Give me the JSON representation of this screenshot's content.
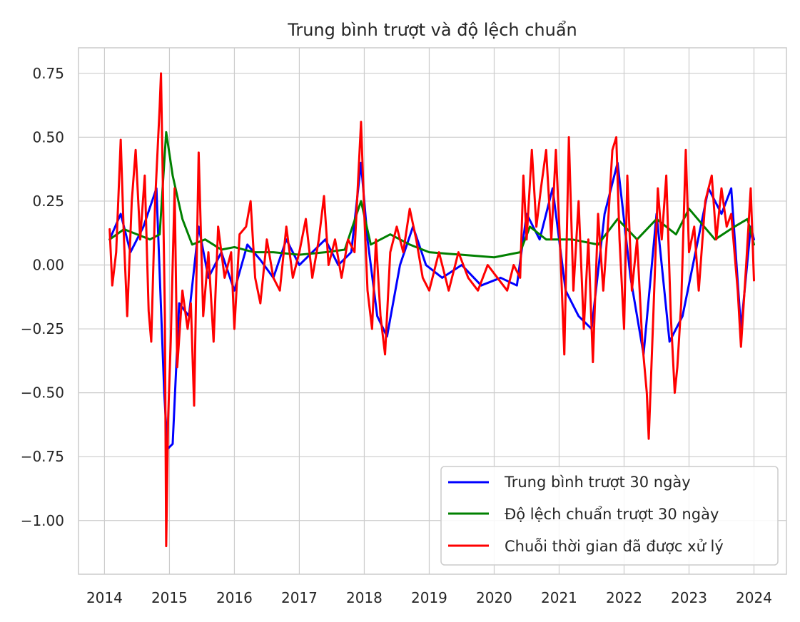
{
  "chart_data": {
    "type": "line",
    "title": "Trung bình trượt và độ lệch chuẩn",
    "xlabel": "",
    "ylabel": "",
    "xlim": [
      2013.6,
      2024.5
    ],
    "ylim": [
      -1.21,
      0.85
    ],
    "x_ticks": [
      2014,
      2015,
      2016,
      2017,
      2018,
      2019,
      2020,
      2021,
      2022,
      2023,
      2024
    ],
    "x_tick_labels": [
      "2014",
      "2015",
      "2016",
      "2017",
      "2018",
      "2019",
      "2020",
      "2021",
      "2022",
      "2023",
      "2024"
    ],
    "y_ticks": [
      0.75,
      0.5,
      0.25,
      0.0,
      -0.25,
      -0.5,
      -0.75,
      -1.0
    ],
    "y_tick_labels": [
      "0.75",
      "0.50",
      "0.25",
      "0.00",
      "−0.25",
      "−0.50",
      "−0.75",
      "−1.00"
    ],
    "grid": true,
    "legend_position": "lower-right",
    "series": [
      {
        "name": "Trung bình trượt 30 ngày",
        "color": "#0000ff",
        "points": [
          [
            2014.08,
            0.1
          ],
          [
            2014.25,
            0.2
          ],
          [
            2014.4,
            0.05
          ],
          [
            2014.6,
            0.15
          ],
          [
            2014.8,
            0.3
          ],
          [
            2014.92,
            -0.5
          ],
          [
            2014.97,
            -0.72
          ],
          [
            2015.05,
            -0.7
          ],
          [
            2015.15,
            -0.15
          ],
          [
            2015.3,
            -0.2
          ],
          [
            2015.45,
            0.15
          ],
          [
            2015.6,
            -0.05
          ],
          [
            2015.8,
            0.05
          ],
          [
            2016.0,
            -0.1
          ],
          [
            2016.2,
            0.08
          ],
          [
            2016.4,
            0.02
          ],
          [
            2016.6,
            -0.05
          ],
          [
            2016.8,
            0.1
          ],
          [
            2017.0,
            0.0
          ],
          [
            2017.2,
            0.05
          ],
          [
            2017.4,
            0.1
          ],
          [
            2017.6,
            0.0
          ],
          [
            2017.8,
            0.05
          ],
          [
            2017.95,
            0.4
          ],
          [
            2018.05,
            0.1
          ],
          [
            2018.2,
            -0.2
          ],
          [
            2018.35,
            -0.28
          ],
          [
            2018.55,
            0.0
          ],
          [
            2018.75,
            0.15
          ],
          [
            2018.95,
            0.0
          ],
          [
            2019.2,
            -0.05
          ],
          [
            2019.5,
            0.0
          ],
          [
            2019.8,
            -0.08
          ],
          [
            2020.1,
            -0.05
          ],
          [
            2020.35,
            -0.08
          ],
          [
            2020.5,
            0.2
          ],
          [
            2020.7,
            0.1
          ],
          [
            2020.9,
            0.3
          ],
          [
            2021.1,
            -0.1
          ],
          [
            2021.3,
            -0.2
          ],
          [
            2021.5,
            -0.25
          ],
          [
            2021.7,
            0.2
          ],
          [
            2021.9,
            0.4
          ],
          [
            2022.1,
            -0.05
          ],
          [
            2022.3,
            -0.35
          ],
          [
            2022.5,
            0.2
          ],
          [
            2022.7,
            -0.3
          ],
          [
            2022.9,
            -0.2
          ],
          [
            2023.1,
            0.05
          ],
          [
            2023.3,
            0.3
          ],
          [
            2023.5,
            0.2
          ],
          [
            2023.65,
            0.3
          ],
          [
            2023.8,
            -0.25
          ],
          [
            2023.95,
            0.15
          ],
          [
            2024.0,
            0.1
          ]
        ]
      },
      {
        "name": "Độ lệch chuẩn trượt 30 ngày",
        "color": "#008000",
        "points": [
          [
            2014.08,
            0.1
          ],
          [
            2014.3,
            0.14
          ],
          [
            2014.5,
            0.12
          ],
          [
            2014.7,
            0.1
          ],
          [
            2014.85,
            0.12
          ],
          [
            2014.95,
            0.52
          ],
          [
            2015.05,
            0.35
          ],
          [
            2015.2,
            0.18
          ],
          [
            2015.35,
            0.08
          ],
          [
            2015.55,
            0.1
          ],
          [
            2015.8,
            0.06
          ],
          [
            2016.0,
            0.07
          ],
          [
            2016.3,
            0.05
          ],
          [
            2016.6,
            0.05
          ],
          [
            2017.0,
            0.04
          ],
          [
            2017.4,
            0.05
          ],
          [
            2017.7,
            0.06
          ],
          [
            2017.95,
            0.25
          ],
          [
            2018.1,
            0.08
          ],
          [
            2018.4,
            0.12
          ],
          [
            2018.7,
            0.08
          ],
          [
            2019.0,
            0.05
          ],
          [
            2019.5,
            0.04
          ],
          [
            2020.0,
            0.03
          ],
          [
            2020.4,
            0.05
          ],
          [
            2020.55,
            0.15
          ],
          [
            2020.8,
            0.1
          ],
          [
            2021.2,
            0.1
          ],
          [
            2021.6,
            0.08
          ],
          [
            2021.9,
            0.18
          ],
          [
            2022.2,
            0.1
          ],
          [
            2022.5,
            0.18
          ],
          [
            2022.8,
            0.12
          ],
          [
            2023.0,
            0.22
          ],
          [
            2023.4,
            0.1
          ],
          [
            2023.7,
            0.15
          ],
          [
            2023.9,
            0.18
          ],
          [
            2024.0,
            0.08
          ]
        ]
      },
      {
        "name": "Chuỗi thời gian đã được xử lý",
        "color": "#ff0000",
        "points": [
          [
            2014.08,
            0.14
          ],
          [
            2014.12,
            -0.08
          ],
          [
            2014.18,
            0.05
          ],
          [
            2014.25,
            0.49
          ],
          [
            2014.3,
            0.1
          ],
          [
            2014.35,
            -0.2
          ],
          [
            2014.42,
            0.25
          ],
          [
            2014.48,
            0.45
          ],
          [
            2014.55,
            0.1
          ],
          [
            2014.62,
            0.35
          ],
          [
            2014.68,
            -0.18
          ],
          [
            2014.72,
            -0.3
          ],
          [
            2014.78,
            0.25
          ],
          [
            2014.85,
            0.62
          ],
          [
            2014.87,
            0.75
          ],
          [
            2014.9,
            0.3
          ],
          [
            2014.93,
            -0.2
          ],
          [
            2014.95,
            -1.1
          ],
          [
            2014.98,
            -0.6
          ],
          [
            2015.02,
            -0.3
          ],
          [
            2015.08,
            0.3
          ],
          [
            2015.12,
            -0.4
          ],
          [
            2015.2,
            -0.1
          ],
          [
            2015.28,
            -0.25
          ],
          [
            2015.33,
            -0.15
          ],
          [
            2015.38,
            -0.55
          ],
          [
            2015.45,
            0.44
          ],
          [
            2015.52,
            -0.2
          ],
          [
            2015.6,
            0.05
          ],
          [
            2015.68,
            -0.3
          ],
          [
            2015.75,
            0.15
          ],
          [
            2015.85,
            -0.05
          ],
          [
            2015.95,
            0.05
          ],
          [
            2016.0,
            -0.25
          ],
          [
            2016.08,
            0.12
          ],
          [
            2016.18,
            0.15
          ],
          [
            2016.25,
            0.25
          ],
          [
            2016.32,
            -0.05
          ],
          [
            2016.4,
            -0.15
          ],
          [
            2016.5,
            0.1
          ],
          [
            2016.6,
            -0.05
          ],
          [
            2016.7,
            -0.1
          ],
          [
            2016.8,
            0.15
          ],
          [
            2016.9,
            -0.05
          ],
          [
            2017.0,
            0.05
          ],
          [
            2017.1,
            0.18
          ],
          [
            2017.2,
            -0.05
          ],
          [
            2017.3,
            0.1
          ],
          [
            2017.38,
            0.27
          ],
          [
            2017.45,
            0.0
          ],
          [
            2017.55,
            0.1
          ],
          [
            2017.65,
            -0.05
          ],
          [
            2017.75,
            0.1
          ],
          [
            2017.85,
            0.05
          ],
          [
            2017.95,
            0.56
          ],
          [
            2018.0,
            0.2
          ],
          [
            2018.05,
            -0.1
          ],
          [
            2018.12,
            -0.25
          ],
          [
            2018.18,
            0.1
          ],
          [
            2018.25,
            -0.2
          ],
          [
            2018.32,
            -0.35
          ],
          [
            2018.4,
            0.05
          ],
          [
            2018.5,
            0.15
          ],
          [
            2018.6,
            0.05
          ],
          [
            2018.7,
            0.22
          ],
          [
            2018.8,
            0.1
          ],
          [
            2018.9,
            -0.05
          ],
          [
            2019.0,
            -0.1
          ],
          [
            2019.15,
            0.05
          ],
          [
            2019.3,
            -0.1
          ],
          [
            2019.45,
            0.05
          ],
          [
            2019.6,
            -0.05
          ],
          [
            2019.75,
            -0.1
          ],
          [
            2019.9,
            0.0
          ],
          [
            2020.05,
            -0.05
          ],
          [
            2020.2,
            -0.1
          ],
          [
            2020.3,
            0.0
          ],
          [
            2020.4,
            -0.05
          ],
          [
            2020.45,
            0.35
          ],
          [
            2020.5,
            0.1
          ],
          [
            2020.58,
            0.45
          ],
          [
            2020.65,
            0.15
          ],
          [
            2020.72,
            0.3
          ],
          [
            2020.8,
            0.45
          ],
          [
            2020.88,
            0.1
          ],
          [
            2020.95,
            0.45
          ],
          [
            2021.02,
            0.05
          ],
          [
            2021.08,
            -0.35
          ],
          [
            2021.15,
            0.5
          ],
          [
            2021.22,
            -0.1
          ],
          [
            2021.3,
            0.25
          ],
          [
            2021.38,
            -0.25
          ],
          [
            2021.45,
            0.1
          ],
          [
            2021.52,
            -0.38
          ],
          [
            2021.6,
            0.2
          ],
          [
            2021.68,
            -0.1
          ],
          [
            2021.75,
            0.15
          ],
          [
            2021.82,
            0.45
          ],
          [
            2021.88,
            0.5
          ],
          [
            2021.93,
            0.1
          ],
          [
            2022.0,
            -0.25
          ],
          [
            2022.05,
            0.35
          ],
          [
            2022.12,
            -0.1
          ],
          [
            2022.2,
            0.1
          ],
          [
            2022.28,
            -0.3
          ],
          [
            2022.35,
            -0.5
          ],
          [
            2022.38,
            -0.68
          ],
          [
            2022.45,
            -0.2
          ],
          [
            2022.52,
            0.3
          ],
          [
            2022.58,
            0.1
          ],
          [
            2022.65,
            0.35
          ],
          [
            2022.72,
            -0.2
          ],
          [
            2022.78,
            -0.5
          ],
          [
            2022.82,
            -0.4
          ],
          [
            2022.88,
            -0.15
          ],
          [
            2022.95,
            0.45
          ],
          [
            2023.0,
            0.05
          ],
          [
            2023.08,
            0.15
          ],
          [
            2023.15,
            -0.1
          ],
          [
            2023.25,
            0.25
          ],
          [
            2023.35,
            0.35
          ],
          [
            2023.42,
            0.1
          ],
          [
            2023.5,
            0.3
          ],
          [
            2023.58,
            0.15
          ],
          [
            2023.65,
            0.2
          ],
          [
            2023.75,
            -0.1
          ],
          [
            2023.8,
            -0.32
          ],
          [
            2023.88,
            0.0
          ],
          [
            2023.95,
            0.3
          ],
          [
            2024.0,
            -0.06
          ]
        ]
      }
    ]
  }
}
